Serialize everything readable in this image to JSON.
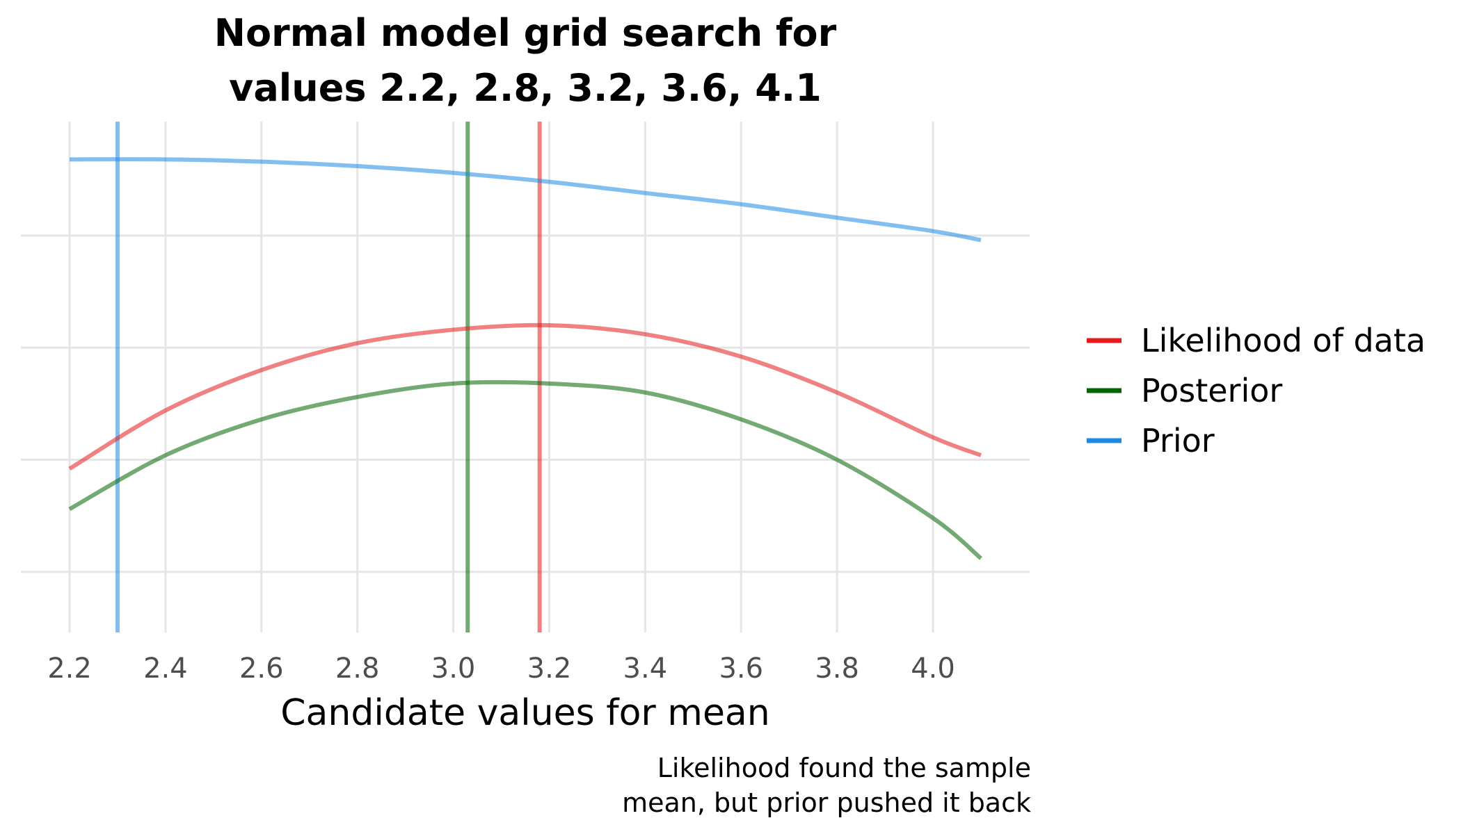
{
  "chart_data": {
    "type": "line",
    "title": "Normal model grid search for values 2.2, 2.8, 3.2, 3.6, 4.1",
    "title_lines": [
      "Normal model grid search for",
      "values 2.2, 2.8, 3.2, 3.6, 4.1"
    ],
    "xlabel": "Candidate values for mean",
    "ylabel": "",
    "xlim": [
      2.2,
      4.1
    ],
    "ylim": [
      0,
      1
    ],
    "x_ticks": [
      "2.2",
      "2.4",
      "2.6",
      "2.8",
      "3.0",
      "3.2",
      "3.4",
      "3.6",
      "3.8",
      "4.0"
    ],
    "x_tick_values": [
      2.2,
      2.4,
      2.6,
      2.8,
      3.0,
      3.2,
      3.4,
      3.6,
      3.8,
      4.0
    ],
    "y_tick_values": [
      0.05,
      0.3,
      0.55,
      0.8
    ],
    "grid": true,
    "legend_position": "right",
    "caption_lines": [
      "Likelihood found the sample",
      "mean, but prior pushed it back"
    ],
    "x": [
      2.2,
      2.4,
      2.6,
      2.8,
      3.0,
      3.2,
      3.4,
      3.6,
      3.8,
      4.0,
      4.1
    ],
    "series": [
      {
        "name": "Likelihood of data",
        "color": "#e41a1c",
        "values": [
          0.28,
          0.41,
          0.5,
          0.56,
          0.59,
          0.6,
          0.58,
          0.53,
          0.45,
          0.35,
          0.31
        ],
        "vline": 3.18
      },
      {
        "name": "Posterior",
        "color": "#006400",
        "values": [
          0.19,
          0.31,
          0.39,
          0.44,
          0.47,
          0.47,
          0.45,
          0.39,
          0.3,
          0.17,
          0.08
        ],
        "vline": 3.03
      },
      {
        "name": "Prior",
        "color": "#1e88e5",
        "values": [
          0.97,
          0.97,
          0.965,
          0.955,
          0.94,
          0.92,
          0.895,
          0.87,
          0.84,
          0.81,
          0.79
        ],
        "vline": 2.3
      }
    ]
  }
}
